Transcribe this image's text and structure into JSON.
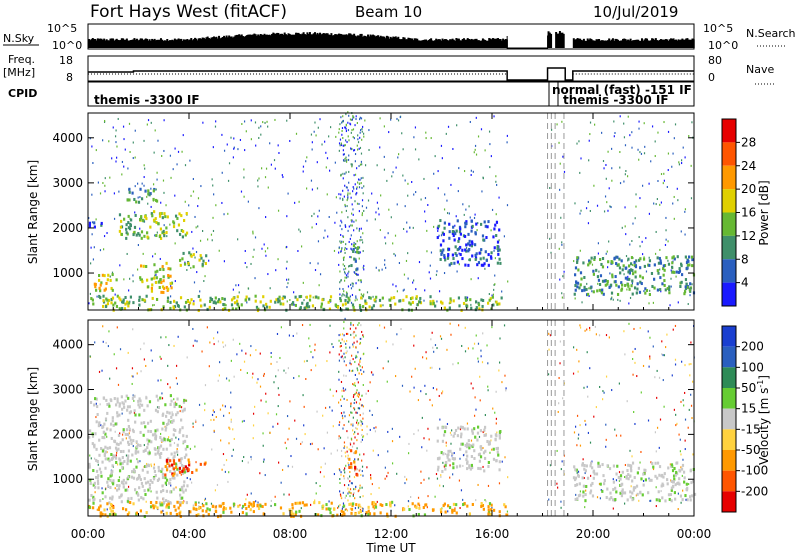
{
  "header": {
    "station": "Fort Hays West (fitACF)",
    "beam": "Beam 10",
    "date": "10/Jul/2019"
  },
  "panels": {
    "nsky": {
      "left_label": "N.Sky",
      "right_label": "N.Search",
      "left_ticks": [
        "10^5",
        "10^0"
      ],
      "right_ticks": [
        "10^5",
        "10^0"
      ]
    },
    "freq": {
      "left_label": "Freq.",
      "left_unit": "[MHz]",
      "right_label": "Nave",
      "left_ticks": [
        "18",
        "8"
      ],
      "right_ticks": [
        "80",
        "0"
      ]
    },
    "cpid": {
      "label": "CPID",
      "modes": [
        {
          "text": "themis -3300 IF"
        },
        {
          "text": "normal (fast) -151 IF"
        },
        {
          "text": "themis -3300 IF"
        }
      ]
    }
  },
  "colors": {
    "power": [
      "#1a1aff",
      "#2a5fbf",
      "#3f8f6a",
      "#66b833",
      "#e0d000",
      "#ff9900",
      "#ff5500",
      "#e60000"
    ],
    "velocity": [
      "#e60000",
      "#ff5500",
      "#ff9900",
      "#ffd23f",
      "#c8c8c8",
      "#66cc33",
      "#2e8b57",
      "#2a5fbf",
      "#1a3fd0"
    ],
    "ground": "#777777",
    "gap_dash": "#999999"
  },
  "chart_data": [
    {
      "type": "heatmap",
      "name": "power",
      "ylabel": "Slant Range [km]",
      "ylim": [
        180,
        4550
      ],
      "yticks": [
        1000,
        2000,
        3000,
        4000
      ],
      "xlim": [
        0,
        24
      ],
      "data_gaps_ut": [
        [
          16.6,
          18.2
        ],
        [
          18.35,
          18.5
        ],
        [
          18.85,
          19.2
        ]
      ],
      "colorbar": {
        "label": "Power [dB]",
        "range": [
          0,
          32
        ],
        "ticks": [
          "28",
          "24",
          "20",
          "16",
          "12",
          "8",
          "4"
        ]
      },
      "regions": [
        {
          "t": [
            1.2,
            3.9
          ],
          "r": [
            1800,
            2400
          ],
          "level": 3
        },
        {
          "t": [
            1.5,
            2.8
          ],
          "r": [
            2600,
            2900
          ],
          "level": 2
        },
        {
          "t": [
            0.0,
            1.0
          ],
          "r": [
            2050,
            2150
          ],
          "level": 1
        },
        {
          "t": [
            0.2,
            1.2
          ],
          "r": [
            600,
            1000
          ],
          "level": 4
        },
        {
          "t": [
            2.0,
            3.3
          ],
          "r": [
            600,
            1250
          ],
          "level": 4
        },
        {
          "t": [
            3.6,
            4.7
          ],
          "r": [
            1150,
            1500
          ],
          "level": 3
        },
        {
          "t": [
            0.0,
            16.6
          ],
          "r": [
            200,
            520
          ],
          "level": 3
        },
        {
          "t": [
            10.3,
            10.7
          ],
          "r": [
            1100,
            1700
          ],
          "level": 2
        },
        {
          "t": [
            13.8,
            16.3
          ],
          "r": [
            1200,
            2200
          ],
          "level": 1
        },
        {
          "t": [
            19.2,
            24.0
          ],
          "r": [
            550,
            1400
          ],
          "level": 2
        }
      ]
    },
    {
      "type": "heatmap",
      "name": "velocity",
      "ylabel": "Slant Range [km]",
      "ylim": [
        180,
        4550
      ],
      "yticks": [
        1000,
        2000,
        3000,
        4000
      ],
      "xlim": [
        0,
        24
      ],
      "xticks": [
        "00:00",
        "04:00",
        "08:00",
        "12:00",
        "16:00",
        "20:00",
        "00:00"
      ],
      "xlabel": "Time UT",
      "data_gaps_ut": [
        [
          16.6,
          18.2
        ],
        [
          18.35,
          18.5
        ],
        [
          18.85,
          19.2
        ]
      ],
      "colorbar": {
        "label": "Velocity [m s^-1]",
        "range": [
          -250,
          250
        ],
        "ticks": [
          "200",
          "100",
          "50",
          "15",
          "-15",
          "-50",
          "-100",
          "-200"
        ]
      },
      "regions": [
        {
          "t": [
            0.0,
            3.9
          ],
          "r": [
            500,
            2900
          ],
          "class": "ground-scatter"
        },
        {
          "t": [
            3.0,
            4.7
          ],
          "r": [
            1100,
            1500
          ],
          "class": "negative"
        },
        {
          "t": [
            10.3,
            10.7
          ],
          "r": [
            1100,
            1700
          ],
          "class": "negative"
        },
        {
          "t": [
            0.0,
            16.6
          ],
          "r": [
            200,
            520
          ],
          "class": "negative-weak"
        },
        {
          "t": [
            13.8,
            16.3
          ],
          "r": [
            1200,
            2200
          ],
          "class": "ground-scatter"
        },
        {
          "t": [
            19.2,
            24.0
          ],
          "r": [
            550,
            1400
          ],
          "class": "ground-scatter"
        }
      ]
    }
  ]
}
